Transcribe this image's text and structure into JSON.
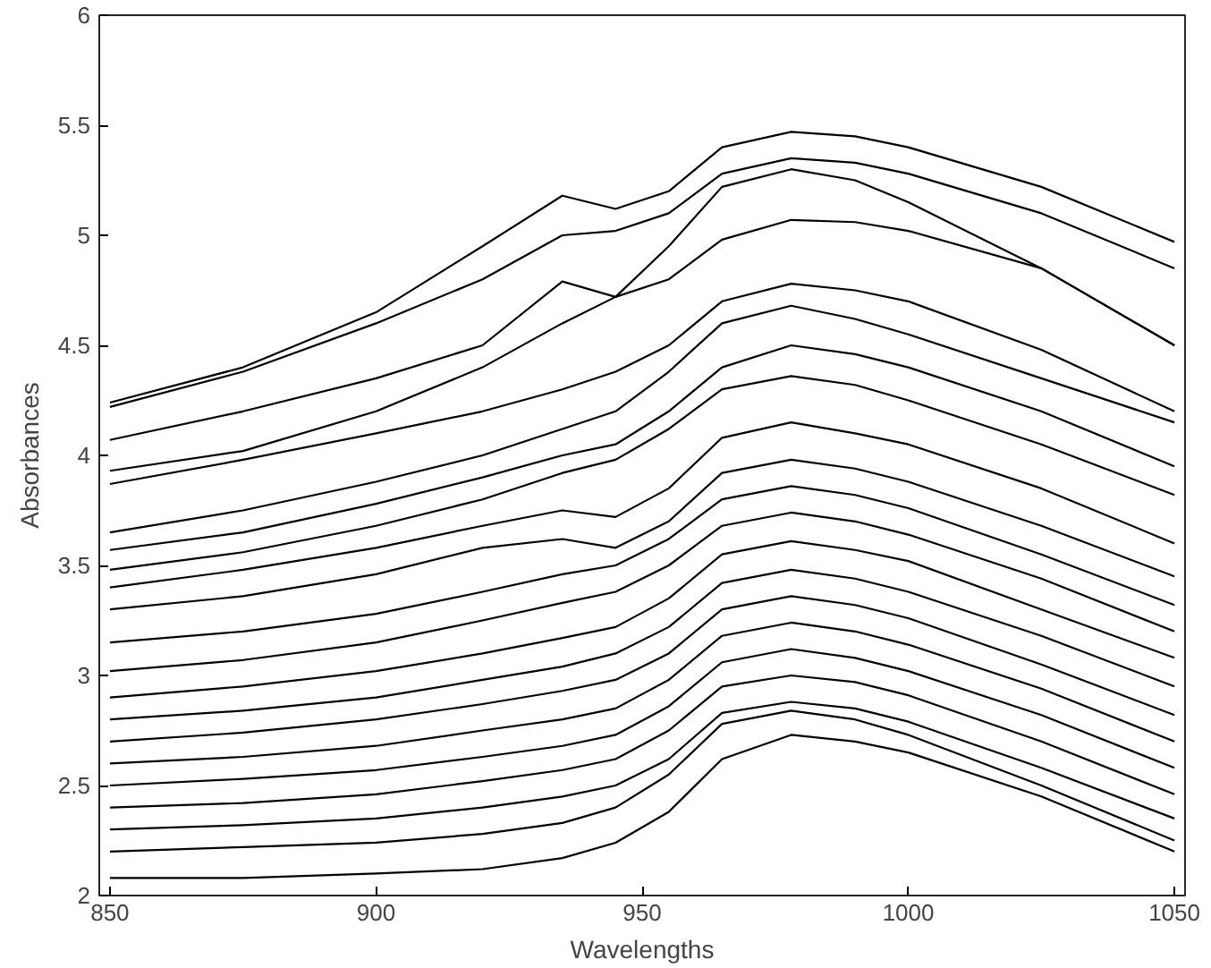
{
  "chart_data": {
    "type": "line",
    "xlabel": "Wavelengths",
    "ylabel": "Absorbances",
    "x": [
      850,
      875,
      900,
      920,
      935,
      945,
      955,
      965,
      978,
      990,
      1000,
      1025,
      1050
    ],
    "xlim": [
      848,
      1052
    ],
    "ylim": [
      2,
      6
    ],
    "xticks": [
      850,
      900,
      950,
      1000,
      1050
    ],
    "yticks": [
      2,
      2.5,
      3,
      3.5,
      4,
      4.5,
      5,
      5.5,
      6
    ],
    "grid": false,
    "marker": "none",
    "line_style": "solid",
    "series": [
      {
        "color": "#000000",
        "values": [
          4.24,
          4.4,
          4.65,
          4.95,
          5.18,
          5.12,
          5.2,
          5.4,
          5.47,
          5.45,
          5.4,
          5.22,
          4.97
        ]
      },
      {
        "color": "#000000",
        "values": [
          4.22,
          4.38,
          4.6,
          4.8,
          5.0,
          5.02,
          5.1,
          5.28,
          5.35,
          5.33,
          5.28,
          5.1,
          4.85
        ]
      },
      {
        "color": "#000000",
        "values": [
          4.07,
          4.2,
          4.35,
          4.5,
          4.79,
          4.72,
          4.8,
          4.98,
          5.07,
          5.06,
          5.02,
          4.85,
          4.5
        ]
      },
      {
        "color": "#000000",
        "values": [
          3.93,
          4.02,
          4.2,
          4.4,
          4.6,
          4.72,
          4.95,
          5.22,
          5.3,
          5.25,
          5.15,
          4.85,
          4.5
        ]
      },
      {
        "color": "#000000",
        "values": [
          3.87,
          3.98,
          4.1,
          4.2,
          4.3,
          4.38,
          4.5,
          4.7,
          4.78,
          4.75,
          4.7,
          4.48,
          4.2
        ]
      },
      {
        "color": "#000000",
        "values": [
          3.65,
          3.75,
          3.88,
          4.0,
          4.12,
          4.2,
          4.38,
          4.6,
          4.68,
          4.62,
          4.55,
          4.35,
          4.15
        ]
      },
      {
        "color": "#000000",
        "values": [
          3.57,
          3.65,
          3.78,
          3.9,
          4.0,
          4.05,
          4.2,
          4.4,
          4.5,
          4.46,
          4.4,
          4.2,
          3.95
        ]
      },
      {
        "color": "#000000",
        "values": [
          3.48,
          3.56,
          3.68,
          3.8,
          3.92,
          3.98,
          4.12,
          4.3,
          4.36,
          4.32,
          4.25,
          4.05,
          3.82
        ]
      },
      {
        "color": "#000000",
        "values": [
          3.4,
          3.48,
          3.58,
          3.68,
          3.75,
          3.72,
          3.85,
          4.08,
          4.15,
          4.1,
          4.05,
          3.85,
          3.6
        ]
      },
      {
        "color": "#000000",
        "values": [
          3.3,
          3.36,
          3.46,
          3.58,
          3.62,
          3.58,
          3.7,
          3.92,
          3.98,
          3.94,
          3.88,
          3.68,
          3.45
        ]
      },
      {
        "color": "#000000",
        "values": [
          3.15,
          3.2,
          3.28,
          3.38,
          3.46,
          3.5,
          3.62,
          3.8,
          3.86,
          3.82,
          3.76,
          3.55,
          3.32
        ]
      },
      {
        "color": "#000000",
        "values": [
          3.02,
          3.07,
          3.15,
          3.25,
          3.33,
          3.38,
          3.5,
          3.68,
          3.74,
          3.7,
          3.64,
          3.44,
          3.2
        ]
      },
      {
        "color": "#000000",
        "values": [
          2.9,
          2.95,
          3.02,
          3.1,
          3.17,
          3.22,
          3.35,
          3.55,
          3.61,
          3.57,
          3.52,
          3.3,
          3.08
        ]
      },
      {
        "color": "#000000",
        "values": [
          2.8,
          2.84,
          2.9,
          2.98,
          3.04,
          3.1,
          3.22,
          3.42,
          3.48,
          3.44,
          3.38,
          3.18,
          2.95
        ]
      },
      {
        "color": "#000000",
        "values": [
          2.7,
          2.74,
          2.8,
          2.87,
          2.93,
          2.98,
          3.1,
          3.3,
          3.36,
          3.32,
          3.26,
          3.05,
          2.82
        ]
      },
      {
        "color": "#000000",
        "values": [
          2.6,
          2.63,
          2.68,
          2.75,
          2.8,
          2.85,
          2.98,
          3.18,
          3.24,
          3.2,
          3.14,
          2.94,
          2.7
        ]
      },
      {
        "color": "#000000",
        "values": [
          2.5,
          2.53,
          2.57,
          2.63,
          2.68,
          2.73,
          2.86,
          3.06,
          3.12,
          3.08,
          3.02,
          2.82,
          2.58
        ]
      },
      {
        "color": "#000000",
        "values": [
          2.4,
          2.42,
          2.46,
          2.52,
          2.57,
          2.62,
          2.75,
          2.95,
          3.0,
          2.97,
          2.91,
          2.7,
          2.46
        ]
      },
      {
        "color": "#000000",
        "values": [
          2.3,
          2.32,
          2.35,
          2.4,
          2.45,
          2.5,
          2.62,
          2.83,
          2.88,
          2.85,
          2.79,
          2.58,
          2.35
        ]
      },
      {
        "color": "#000000",
        "values": [
          2.2,
          2.22,
          2.24,
          2.28,
          2.33,
          2.4,
          2.55,
          2.78,
          2.84,
          2.8,
          2.73,
          2.5,
          2.25
        ]
      },
      {
        "color": "#000000",
        "values": [
          2.08,
          2.08,
          2.1,
          2.12,
          2.17,
          2.24,
          2.38,
          2.62,
          2.73,
          2.7,
          2.65,
          2.45,
          2.2
        ]
      }
    ]
  }
}
